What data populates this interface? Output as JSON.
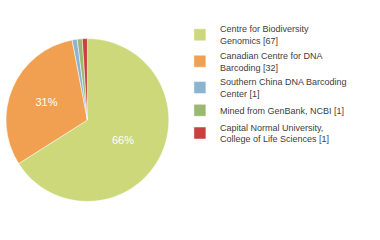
{
  "chart_data": {
    "type": "pie",
    "categories": [
      "Centre for Biodiversity\nGenomics [67]",
      "Canadian Centre for DNA\nBarcoding [32]",
      "Southern China DNA Barcoding\nCenter [1]",
      "Mined from GenBank, NCBI [1]",
      "Capital Normal University,\nCollege of Life Sciences [1]"
    ],
    "values": [
      66,
      31,
      1,
      1,
      1
    ],
    "value_labels": [
      "66%",
      "31%",
      null,
      null,
      null
    ],
    "data_labels": true,
    "colors": [
      "#cdd87a",
      "#f0a050",
      "#8ab4d0",
      "#9ab870",
      "#c84040"
    ],
    "legend": "right"
  }
}
